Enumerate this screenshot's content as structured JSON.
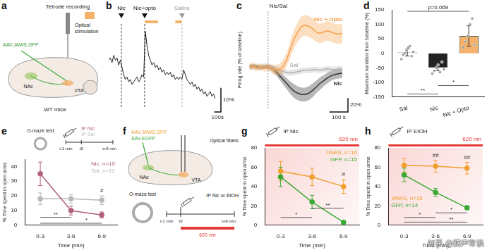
{
  "panel_labels": [
    "a",
    "b",
    "c",
    "d",
    "e",
    "f",
    "g",
    "h"
  ],
  "diagrams": {
    "a": {
      "tetrode": "Tetrode recording",
      "stimulation": "Optical stimulation",
      "virus": "AAV.JAWS.GFP",
      "nac": "NAc",
      "vta": "VTA",
      "mice": "WT mice"
    },
    "f": {
      "virus_jaws": "AAV.JAWS.GFP",
      "virus_gfp": "AAV.EGFP",
      "fibers": "Optical fibers",
      "nac": "NAc",
      "vta": "VTA",
      "test": "O-maze test",
      "injection": "IP Nic or EtOH",
      "t_minus": "t-1 min",
      "t_zero": "t0",
      "t_plus": "t+9 min",
      "light": "620 nm"
    }
  },
  "watermark": "知乎 @脑声常谈",
  "chart_data": [
    {
      "type": "line",
      "color": "#222222",
      "tick_labels": false,
      "grid": false,
      "x": [
        0,
        25,
        50,
        75,
        100,
        125,
        150,
        175,
        200,
        225,
        250,
        275,
        300,
        325,
        350,
        375,
        400,
        425,
        450,
        475,
        500,
        525,
        550,
        575,
        600,
        625,
        650,
        675,
        700,
        725,
        750,
        775,
        800,
        825,
        850,
        875,
        900,
        925,
        950,
        975,
        1000,
        1025,
        1050,
        1075,
        1100,
        1125,
        1150,
        1175,
        1200,
        1225,
        1250,
        1275,
        1300,
        1325,
        1350,
        1375,
        1400,
        1425,
        1450,
        1475,
        1500,
        1525,
        1550,
        1575,
        1600
      ],
      "values": [
        0,
        1,
        -1,
        2,
        0,
        1,
        -2,
        0,
        -3,
        -6,
        -8,
        -7,
        -9,
        -8,
        -10,
        -9,
        -8,
        -7,
        -9,
        -8,
        -6,
        -7,
        12,
        6,
        2,
        0,
        -2,
        -1,
        -3,
        -2,
        -4,
        -3,
        -5,
        -4,
        -6,
        -5,
        -6,
        -5,
        -7,
        -6,
        -8,
        -7,
        -8,
        -7,
        -8,
        -4,
        -6,
        -8,
        -9,
        -10,
        -9,
        -11,
        -10,
        -12,
        -11,
        -13,
        -12,
        -14,
        -13,
        -15,
        -14,
        -13,
        -15,
        -14,
        -16
      ],
      "xlim": [
        0,
        1600
      ],
      "ylim": [
        -20,
        15
      ],
      "events": [
        {
          "label": "Nic",
          "x": 190,
          "color": "#111111"
        },
        {
          "label": "Nic+opto",
          "x": 540,
          "color": "#111111"
        },
        {
          "label": "Saline",
          "x": 1100,
          "color": "#999999"
        }
      ],
      "stimulation": [
        [
          540,
          740
        ],
        [
          1000,
          1100
        ]
      ],
      "stimulation_color": "#f5b06a",
      "scale_bar": {
        "x": 100,
        "x_label": "100s",
        "y": 10,
        "y_label": "10%"
      }
    },
    {
      "type": "line",
      "y_label": "Firing rate (% of baseline)",
      "tick_labels": false,
      "grid": false,
      "x": [
        -100,
        -80,
        -60,
        -40,
        -20,
        0,
        20,
        40,
        60,
        80,
        100,
        120,
        140,
        160,
        180,
        200,
        220,
        240,
        260,
        280,
        300,
        320,
        340,
        360,
        380,
        400
      ],
      "series": [
        {
          "name": "Nic + Opto",
          "color": "#f5a04a",
          "values": [
            100,
            101,
            99,
            100,
            98,
            100,
            97,
            95,
            96,
            100,
            110,
            125,
            140,
            150,
            158,
            160,
            158,
            155,
            150,
            148,
            150,
            152,
            150,
            148,
            147,
            148
          ],
          "error": [
            5,
            5,
            5,
            5,
            5,
            5,
            6,
            7,
            8,
            9,
            10,
            12,
            13,
            14,
            15,
            15,
            15,
            15,
            14,
            14,
            14,
            14,
            14,
            14,
            14,
            14
          ]
        },
        {
          "name": "Sal",
          "color": "#b5b5b5",
          "values": [
            100,
            100,
            99,
            100,
            101,
            100,
            99,
            97,
            95,
            93,
            92,
            91,
            92,
            93,
            94,
            95,
            95,
            96,
            96,
            95,
            96,
            97,
            96,
            96,
            97,
            97
          ],
          "error": [
            4,
            4,
            4,
            4,
            4,
            4,
            4,
            4,
            4,
            4,
            4,
            4,
            4,
            4,
            4,
            4,
            4,
            4,
            4,
            4,
            4,
            4,
            4,
            4,
            4,
            4
          ]
        },
        {
          "name": "Nic",
          "color": "#333333",
          "values": [
            100,
            101,
            100,
            99,
            100,
            100,
            98,
            94,
            88,
            82,
            76,
            70,
            65,
            62,
            60,
            60,
            62,
            66,
            71,
            76,
            80,
            84,
            87,
            89,
            90,
            91
          ],
          "error": [
            3,
            3,
            3,
            3,
            3,
            3,
            4,
            5,
            6,
            7,
            8,
            9,
            10,
            10,
            10,
            10,
            10,
            10,
            9,
            9,
            8,
            8,
            7,
            7,
            7,
            7
          ]
        }
      ],
      "xlim": [
        -100,
        400
      ],
      "ylim": [
        40,
        180
      ],
      "event": "Nic/Sal",
      "event_x": 0,
      "scale_bar": {
        "x": 100,
        "x_label": "100 s",
        "y": 20,
        "y_label": "20%"
      }
    },
    {
      "type": "bar",
      "y_label": "Maximum variation from baseline (%)",
      "grid": false,
      "categories": [
        "Sal",
        "Nic",
        "Nic + Opto"
      ],
      "values": [
        3,
        -50,
        60
      ],
      "error": [
        12,
        10,
        35
      ],
      "colors": [
        "#ffffff",
        "#222222",
        "#f5b06a"
      ],
      "points": [
        [
          -20,
          -5,
          0,
          10,
          20,
          25,
          -10,
          5
        ],
        [
          -70,
          -60,
          -50,
          -40,
          -65,
          -30,
          -55
        ],
        [
          20,
          40,
          60,
          100,
          120,
          30
        ]
      ],
      "point_color": "#9a9a9a",
      "ylim": [
        -150,
        150
      ],
      "yticks": [
        -150,
        -100,
        -50,
        0,
        50,
        100,
        150
      ],
      "annotations": [
        "p=0.069",
        "**",
        "*"
      ]
    },
    {
      "type": "line",
      "x_label": "Time (min)",
      "y_label": "% Time spent in open arms",
      "grid": false,
      "marker": "circle",
      "legend": "upper right",
      "categories": [
        "0-3",
        "3-6",
        "6-9"
      ],
      "series": [
        {
          "name": "Nic, n=10",
          "color": "#b0607a",
          "values": [
            35,
            10,
            7
          ],
          "error": [
            8,
            3,
            2
          ]
        },
        {
          "name": "Sal, n=12",
          "color": "#b8b8b8",
          "values": [
            18,
            18,
            17
          ],
          "error": [
            4,
            3,
            3
          ]
        }
      ],
      "ylim": [
        0,
        45
      ],
      "yticks": [
        0,
        10,
        20,
        30,
        40
      ],
      "annotations": [
        "O-maze test",
        "IP Nic",
        "IP Sal",
        "t-1 min",
        "t0",
        "t+9 min",
        "**",
        "*",
        "#"
      ]
    },
    {
      "type": "line",
      "x_label": "Time (min)",
      "y_label": "% Time spent in open arms",
      "grid": false,
      "marker": "circle",
      "legend": "upper right",
      "categories": [
        "0-3",
        "3-6",
        "6-9"
      ],
      "series": [
        {
          "name": "JAWS, n=16",
          "color": "#f0a030",
          "values": [
            56,
            50,
            40
          ],
          "error": [
            10,
            9,
            7
          ]
        },
        {
          "name": "GFP, n=15",
          "color": "#3aaa35",
          "values": [
            50,
            24,
            3
          ],
          "error": [
            10,
            7,
            1
          ]
        }
      ],
      "ylim": [
        0,
        80
      ],
      "yticks": [
        0,
        20,
        40,
        60,
        80
      ],
      "light": {
        "label": "620 nm",
        "color": "#e53935"
      },
      "annotations": [
        "IP Nic",
        "*",
        "**",
        "#"
      ]
    },
    {
      "type": "line",
      "x_label": "Time (min)",
      "y_label": "% Time spent in open arms",
      "grid": false,
      "marker": "circle",
      "legend": "lower left",
      "categories": [
        "0-3",
        "3-6",
        "6-9"
      ],
      "series": [
        {
          "name": "JAWS, n=15",
          "color": "#f0a030",
          "values": [
            62,
            61,
            59
          ],
          "error": [
            7,
            6,
            6
          ]
        },
        {
          "name": "GFP, n=14",
          "color": "#3aaa35",
          "values": [
            52,
            34,
            18
          ],
          "error": [
            7,
            4,
            2
          ]
        }
      ],
      "ylim": [
        0,
        80
      ],
      "yticks": [
        0,
        20,
        40,
        60,
        80
      ],
      "light": {
        "label": "620 nm",
        "color": "#e53935"
      },
      "annotations": [
        "IP EtOH",
        "##",
        "##",
        "*",
        "**",
        "*"
      ]
    }
  ]
}
